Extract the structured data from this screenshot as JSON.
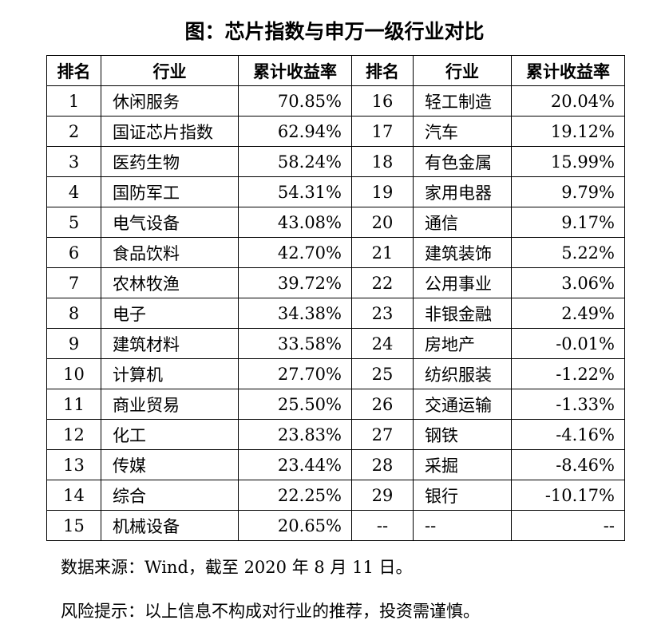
{
  "title": "图：芯片指数与申万一级行业对比",
  "table": {
    "header": [
      "排名",
      "行业",
      "累计收益率",
      "排名",
      "行业",
      "累计收益率"
    ],
    "rows": [
      [
        "1",
        "休闲服务",
        "70.85%",
        "16",
        "轻工制造",
        "20.04%"
      ],
      [
        "2",
        "国证芯片指数",
        "62.94%",
        "17",
        "汽车",
        "19.12%"
      ],
      [
        "3",
        "医药生物",
        "58.24%",
        "18",
        "有色金属",
        "15.99%"
      ],
      [
        "4",
        "国防军工",
        "54.31%",
        "19",
        "家用电器",
        "9.79%"
      ],
      [
        "5",
        "电气设备",
        "43.08%",
        "20",
        "通信",
        "9.17%"
      ],
      [
        "6",
        "食品饮料",
        "42.70%",
        "21",
        "建筑装饰",
        "5.22%"
      ],
      [
        "7",
        "农林牧渔",
        "39.72%",
        "22",
        "公用事业",
        "3.06%"
      ],
      [
        "8",
        "电子",
        "34.38%",
        "23",
        "非银金融",
        "2.49%"
      ],
      [
        "9",
        "建筑材料",
        "33.58%",
        "24",
        "房地产",
        "-0.01%"
      ],
      [
        "10",
        "计算机",
        "27.70%",
        "25",
        "纺织服装",
        "-1.22%"
      ],
      [
        "11",
        "商业贸易",
        "25.50%",
        "26",
        "交通运输",
        "-1.33%"
      ],
      [
        "12",
        "化工",
        "23.83%",
        "27",
        "钢铁",
        "-4.16%"
      ],
      [
        "13",
        "传媒",
        "23.44%",
        "28",
        "采掘",
        "-8.46%"
      ],
      [
        "14",
        "综合",
        "22.25%",
        "29",
        "银行",
        "-10.17%"
      ],
      [
        "15",
        "机械设备",
        "20.65%",
        "--",
        "--",
        "--"
      ]
    ]
  },
  "source": "数据来源：Wind，截至 2020 年 8 月 11 日。",
  "risk": "风险提示：以上信息不构成对行业的推荐，投资需谨慎。"
}
